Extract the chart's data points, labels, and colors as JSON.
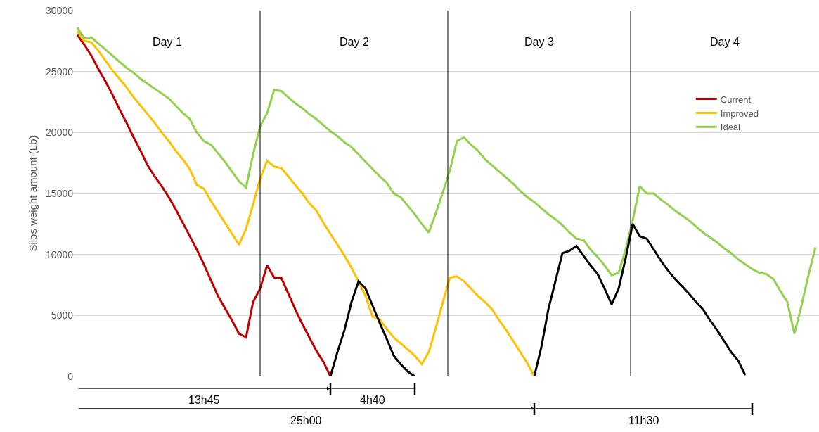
{
  "chart_data": {
    "type": "line",
    "ylabel": "Silos weight amount (Lb)",
    "ylim": [
      0,
      30000
    ],
    "yticks": [
      0,
      5000,
      10000,
      15000,
      20000,
      25000,
      30000
    ],
    "tick_labels": "y",
    "grid": "y",
    "legend": "right",
    "marker": "none",
    "line_style": "solid",
    "categories": [
      null,
      null,
      null,
      null,
      null,
      null,
      null,
      null,
      null,
      null,
      null,
      null,
      null,
      null,
      null,
      null,
      null,
      null,
      null,
      null,
      null,
      null,
      null,
      null,
      null,
      null,
      null,
      null,
      null,
      null,
      null,
      null,
      null,
      null,
      null,
      null,
      null,
      null,
      null,
      null,
      null,
      null,
      null,
      null,
      null,
      null,
      null,
      null,
      null,
      null,
      null,
      null,
      null,
      null,
      null,
      null,
      null,
      null,
      null,
      null,
      null,
      null,
      null,
      null,
      null,
      null,
      null,
      null,
      null,
      null,
      null,
      null,
      null,
      null,
      null,
      null,
      null,
      null,
      null,
      null,
      null,
      null,
      null,
      null,
      null,
      null,
      null,
      null,
      null,
      null,
      null,
      null,
      null,
      null,
      null,
      null,
      null,
      null,
      null,
      null,
      null,
      null,
      null,
      null,
      null,
      null
    ],
    "series": [
      {
        "name": "Current",
        "color": "#c00000",
        "values": [
          28000,
          27200,
          26300,
          25200,
          24200,
          23100,
          21900,
          20800,
          19600,
          18500,
          17300,
          16400,
          15600,
          14700,
          13700,
          12600,
          11500,
          10400,
          9200,
          7900,
          6600,
          5600,
          4600,
          3500,
          3200,
          6100,
          7200,
          9100,
          8100,
          8100,
          6800,
          5500,
          4300,
          3200,
          2100,
          1200,
          0,
          null,
          null,
          null,
          null,
          null,
          null,
          null,
          null,
          null,
          null,
          null,
          null,
          null,
          null,
          null,
          null,
          null,
          null,
          null,
          null,
          null,
          null,
          null,
          null,
          null,
          null,
          null,
          null,
          null,
          null,
          null,
          null,
          null,
          null,
          null,
          null,
          null,
          null,
          null,
          null,
          null,
          null,
          null,
          null,
          null,
          null,
          null,
          null,
          null,
          null,
          null,
          null,
          null,
          null,
          null,
          null,
          null,
          null,
          null,
          null,
          null,
          null,
          null,
          null,
          null,
          null,
          null,
          null,
          null
        ]
      },
      {
        "name": "Improved",
        "color": "#ffc000",
        "values": [
          28300,
          27500,
          27400,
          26700,
          25900,
          25100,
          24400,
          23700,
          22900,
          22200,
          21500,
          20800,
          20000,
          19300,
          18500,
          17800,
          17000,
          15700,
          15400,
          14400,
          13500,
          12600,
          11700,
          10800,
          12100,
          14100,
          16200,
          17700,
          17200,
          17100,
          16400,
          15700,
          15000,
          14200,
          13600,
          12600,
          11700,
          10800,
          9900,
          8900,
          7800,
          6600,
          4900,
          4700,
          3900,
          3200,
          2700,
          2200,
          1700,
          1000,
          2000,
          4000,
          6100,
          8100,
          8200,
          7800,
          7200,
          6600,
          6100,
          5500,
          4600,
          3800,
          2900,
          2000,
          1100,
          0,
          null,
          null,
          null,
          null,
          null,
          null,
          null,
          null,
          null,
          null,
          null,
          null,
          null,
          null,
          null,
          null,
          null,
          null,
          null,
          null,
          null,
          null,
          null,
          null,
          null,
          null,
          null,
          null,
          null,
          null,
          null,
          null,
          null,
          null,
          null,
          null,
          null,
          null,
          null,
          null
        ]
      },
      {
        "name": "Ideal",
        "color": "#92d050",
        "values": [
          28600,
          27700,
          27800,
          27300,
          26800,
          26300,
          25800,
          25300,
          24900,
          24400,
          24000,
          23600,
          23200,
          22800,
          22200,
          21600,
          21100,
          20000,
          19300,
          19000,
          18300,
          17600,
          16800,
          16000,
          15500,
          18200,
          20500,
          21600,
          23500,
          23400,
          22900,
          22400,
          22000,
          21500,
          21100,
          20600,
          20100,
          19700,
          19200,
          18800,
          18200,
          17600,
          17000,
          16400,
          15900,
          15000,
          14700,
          14000,
          13300,
          12500,
          11800,
          13400,
          15100,
          16900,
          19300,
          19600,
          19000,
          18500,
          17800,
          17300,
          16800,
          16300,
          15800,
          15200,
          14700,
          14300,
          13800,
          13300,
          12900,
          12400,
          11800,
          11300,
          11200,
          10400,
          9800,
          9100,
          8300,
          8500,
          10400,
          12800,
          15600,
          15000,
          15000,
          14500,
          14100,
          13600,
          13200,
          12800,
          12300,
          11800,
          11400,
          11000,
          10500,
          10100,
          9600,
          9200,
          8800,
          8500,
          8400,
          8000,
          7000,
          6100,
          3500,
          5800,
          8300,
          10600
        ]
      },
      {
        "color": "#000000",
        "values": [
          null,
          null,
          null,
          null,
          null,
          null,
          null,
          null,
          null,
          null,
          null,
          null,
          null,
          null,
          null,
          null,
          null,
          null,
          null,
          null,
          null,
          null,
          null,
          null,
          null,
          null,
          null,
          null,
          null,
          null,
          null,
          null,
          null,
          null,
          null,
          null,
          0,
          2000,
          3800,
          6100,
          7800,
          7200,
          5800,
          4400,
          3100,
          1700,
          1000,
          400,
          0,
          null,
          null,
          null,
          null,
          null,
          null,
          null,
          null,
          null,
          null,
          null,
          null,
          null,
          null,
          null,
          null,
          0,
          2400,
          5500,
          7800,
          10100,
          10300,
          10700,
          9900,
          9100,
          8400,
          7200,
          5900,
          7200,
          9700,
          12500,
          11500,
          11300,
          10400,
          9500,
          8700,
          8000,
          7400,
          6800,
          6100,
          5500,
          4600,
          3800,
          2900,
          2000,
          1300,
          100,
          null,
          null,
          null,
          null,
          null,
          null,
          null,
          null,
          null,
          null
        ]
      }
    ],
    "annotations": [
      "Day 1",
      "Day 2",
      "Day 3",
      "Day 4",
      "13h45",
      "4h40",
      "25h00",
      "11h30"
    ]
  }
}
